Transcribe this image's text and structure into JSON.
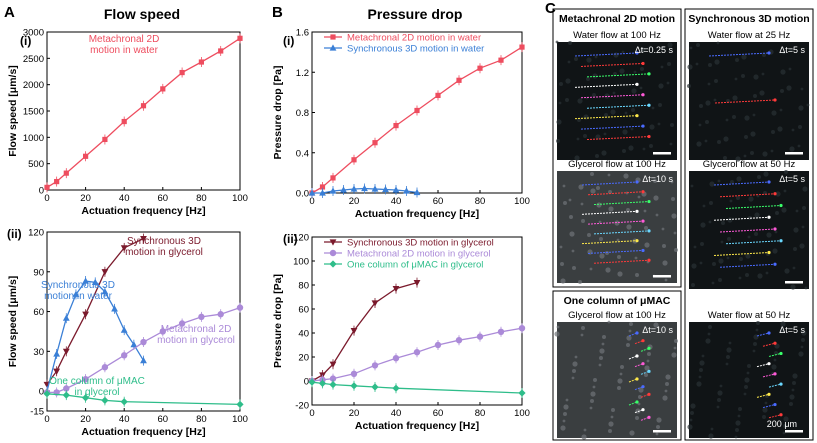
{
  "colors": {
    "red": "#ee4d5f",
    "blue": "#3a7fd6",
    "darkred": "#7b1a2c",
    "purple": "#ab8ad8",
    "green": "#2ebd8a",
    "black": "#000000"
  },
  "panels": {
    "a_label": "A",
    "a_title": "Flow speed",
    "b_label": "B",
    "b_title": "Pressure drop",
    "c_label": "C"
  },
  "chart_data": [
    {
      "id": "A-i",
      "type": "line",
      "sublabel": "(i)",
      "xlabel": "Actuation frequency [Hz]",
      "ylabel": "Flow speed [μm/s]",
      "xlim": [
        0,
        100
      ],
      "ylim": [
        0,
        3000
      ],
      "xticks": [
        0,
        20,
        40,
        60,
        80,
        100
      ],
      "yticks": [
        0,
        500,
        1000,
        1500,
        2000,
        2500,
        3000
      ],
      "series": [
        {
          "name": "Metachronal 2D motion in water",
          "color": "#ee4d5f",
          "marker": "square",
          "x": [
            0,
            5,
            10,
            20,
            30,
            40,
            50,
            60,
            70,
            80,
            90,
            100
          ],
          "y": [
            50,
            160,
            320,
            640,
            960,
            1300,
            1600,
            1920,
            2230,
            2430,
            2640,
            2880
          ]
        }
      ],
      "annotations": [
        {
          "lines": [
            "Metachronal 2D",
            "motion in water"
          ],
          "color": "#ee4d5f"
        }
      ]
    },
    {
      "id": "A-ii",
      "type": "line",
      "sublabel": "(ii)",
      "xlabel": "Actuation frequency [Hz]",
      "ylabel": "Flow speed [μm/s]",
      "xlim": [
        0,
        100
      ],
      "ylim": [
        -15,
        120
      ],
      "xticks": [
        0,
        20,
        40,
        60,
        80,
        100
      ],
      "yticks": [
        -15,
        0,
        30,
        60,
        90,
        120
      ],
      "series": [
        {
          "name": "Synchronous 3D motion in glycerol",
          "color": "#7b1a2c",
          "marker": "triangle-down",
          "x": [
            0,
            5,
            10,
            20,
            30,
            40,
            50
          ],
          "y": [
            5,
            15,
            30,
            58,
            90,
            108,
            115
          ]
        },
        {
          "name": "Synchronous 3D motion in water",
          "color": "#3a7fd6",
          "marker": "triangle-up",
          "x": [
            0,
            5,
            10,
            15,
            20,
            25,
            30,
            35,
            40,
            45,
            50
          ],
          "y": [
            0,
            28,
            55,
            73,
            83,
            82,
            75,
            62,
            46,
            35,
            23
          ]
        },
        {
          "name": "Metachronal 2D motion in glycerol",
          "color": "#ab8ad8",
          "marker": "circle",
          "x": [
            0,
            5,
            10,
            20,
            30,
            40,
            50,
            60,
            70,
            80,
            90,
            100
          ],
          "y": [
            -1,
            -1,
            2,
            9,
            18,
            27,
            37,
            45,
            51,
            56,
            58,
            63
          ]
        },
        {
          "name": "One column of μMAC in glycerol",
          "color": "#2ebd8a",
          "marker": "diamond",
          "x": [
            0,
            10,
            20,
            30,
            40,
            100
          ],
          "y": [
            -2,
            -3,
            -5,
            -7,
            -8,
            -10
          ]
        }
      ],
      "annotations": [
        {
          "lines": [
            "Synchronous 3D",
            "motion in glycerol"
          ],
          "color": "#7b1a2c"
        },
        {
          "lines": [
            "Synchronous 3D",
            "motion in water"
          ],
          "color": "#3a7fd6"
        },
        {
          "lines": [
            "Metachronal 2D",
            "motion in glycerol"
          ],
          "color": "#ab8ad8"
        },
        {
          "lines": [
            "One column of μMAC",
            "in glycerol"
          ],
          "color": "#2ebd8a"
        }
      ]
    },
    {
      "id": "B-i",
      "type": "line",
      "sublabel": "(i)",
      "xlabel": "Actuation frequency [Hz]",
      "ylabel": "Pressure drop [Pa]",
      "xlim": [
        0,
        100
      ],
      "ylim": [
        0,
        1.6
      ],
      "xticks": [
        0,
        20,
        40,
        60,
        80,
        100
      ],
      "yticks": [
        0.0,
        0.4,
        0.8,
        1.2,
        1.6
      ],
      "yticklabels": [
        "0.0",
        "0.4",
        "0.8",
        "1.2",
        "1.6"
      ],
      "legend": "top-left",
      "series": [
        {
          "name": "Metachronal 2D motion in water",
          "color": "#ee4d5f",
          "marker": "square",
          "x": [
            0,
            5,
            10,
            20,
            30,
            40,
            50,
            60,
            70,
            80,
            90,
            100
          ],
          "y": [
            0.0,
            0.06,
            0.15,
            0.33,
            0.5,
            0.67,
            0.82,
            0.97,
            1.12,
            1.24,
            1.32,
            1.45
          ]
        },
        {
          "name": "Synchronous 3D motion in water",
          "color": "#3a7fd6",
          "marker": "triangle-up",
          "x": [
            0,
            5,
            10,
            15,
            20,
            25,
            30,
            35,
            40,
            45,
            50
          ],
          "y": [
            0.0,
            0.0,
            0.02,
            0.03,
            0.04,
            0.045,
            0.04,
            0.035,
            0.03,
            0.02,
            0.005
          ]
        }
      ]
    },
    {
      "id": "B-ii",
      "type": "line",
      "sublabel": "(ii)",
      "xlabel": "Actuation frequency [Hz]",
      "ylabel": "Pressure drop [Pa]",
      "xlim": [
        0,
        100
      ],
      "ylim": [
        -20,
        120
      ],
      "xticks": [
        0,
        20,
        40,
        60,
        80,
        100
      ],
      "yticks": [
        -20,
        0,
        20,
        40,
        60,
        80,
        100,
        120
      ],
      "legend": "top-left",
      "series": [
        {
          "name": "Synchronous 3D motion in glycerol",
          "color": "#7b1a2c",
          "marker": "triangle-down",
          "x": [
            0,
            5,
            10,
            20,
            30,
            40,
            50
          ],
          "y": [
            0,
            5,
            14,
            42,
            65,
            77,
            82
          ]
        },
        {
          "name": "Metachronal 2D motion in glycerol",
          "color": "#ab8ad8",
          "marker": "circle",
          "x": [
            0,
            5,
            10,
            20,
            30,
            40,
            50,
            60,
            70,
            80,
            90,
            100
          ],
          "y": [
            0,
            1,
            2,
            6,
            13,
            19,
            24,
            30,
            34,
            37,
            41,
            44
          ]
        },
        {
          "name": "One column of μMAC in glycerol",
          "color": "#2ebd8a",
          "marker": "diamond",
          "x": [
            0,
            5,
            10,
            20,
            30,
            40,
            100
          ],
          "y": [
            -1,
            -2,
            -3,
            -4,
            -5,
            -6,
            -10
          ]
        }
      ]
    }
  ],
  "micrographs": {
    "col1_title": "Metachronal 2D motion",
    "col2_title": "Synchronous 3D motion",
    "col3_title": "One column of μMAC",
    "tiles": [
      {
        "caption": "Water flow at 100 Hz",
        "dt": "Δt=0.25 s"
      },
      {
        "caption": "Glycerol flow at 100 Hz",
        "dt": "Δt=10 s"
      },
      {
        "caption": "Water flow at 25 Hz",
        "dt": "Δt=5 s"
      },
      {
        "caption": "Glycerol flow at 50 Hz",
        "dt": "Δt=5 s"
      },
      {
        "caption": "Glycerol flow at 100 Hz",
        "dt": "Δt=10 s"
      },
      {
        "caption": "Water flow at 50 Hz",
        "dt": "Δt=5 s"
      }
    ],
    "scale_bar": "200 μm",
    "track_colors": [
      "#4a6bff",
      "#ff3a3a",
      "#39ff6a",
      "#ffffff",
      "#ff5ad8",
      "#6ad8ff",
      "#ffe94a"
    ]
  }
}
